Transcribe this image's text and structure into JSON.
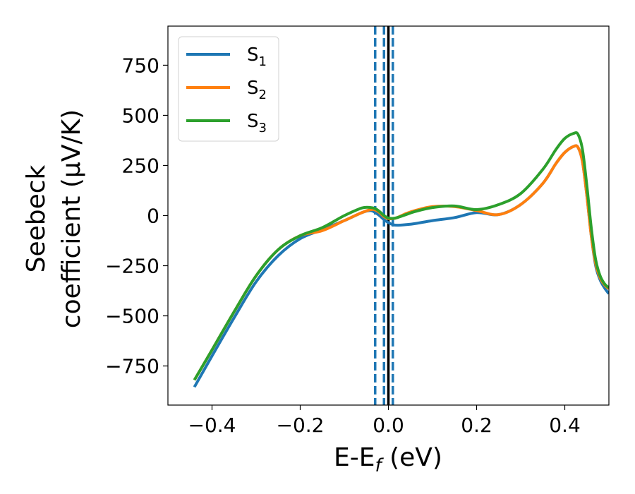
{
  "chart_data": {
    "type": "line",
    "xlabel": "E-E_f (eV)",
    "ylabel": [
      "Seebeck",
      "coefficient  (μV/K)"
    ],
    "xlim": [
      -0.5,
      0.5
    ],
    "ylim": [
      -945,
      945
    ],
    "xticks": [
      -0.4,
      -0.2,
      0.0,
      0.2,
      0.4
    ],
    "xtick_labels": [
      "−0.4",
      "−0.2",
      "0.0",
      "0.2",
      "0.4"
    ],
    "yticks": [
      750,
      500,
      250,
      0,
      -250,
      -500,
      -750
    ],
    "ytick_labels": [
      "750",
      "500",
      "250",
      "0",
      "−250",
      "−500",
      "−750"
    ],
    "grid": false,
    "legend_position": "top-left",
    "vertical_lines": [
      {
        "x": -0.03,
        "style": "dashed",
        "color": "#1f77b4"
      },
      {
        "x": -0.01,
        "style": "dashed",
        "color": "#1f77b4"
      },
      {
        "x": 0.01,
        "style": "dashed",
        "color": "#1f77b4"
      },
      {
        "x": 0.0,
        "style": "solid",
        "color": "#000000"
      }
    ],
    "series": [
      {
        "name": "S1",
        "label_main": "S",
        "label_sub": "1",
        "color": "#1f77b4",
        "x": [
          -0.44,
          -0.4,
          -0.35,
          -0.3,
          -0.25,
          -0.2,
          -0.15,
          -0.1,
          -0.06,
          -0.04,
          -0.03,
          -0.02,
          -0.01,
          0.0,
          0.01,
          0.02,
          0.04,
          0.06,
          0.1,
          0.15,
          0.2,
          0.25,
          0.3,
          0.35,
          0.38,
          0.4,
          0.42,
          0.43,
          0.44,
          0.45,
          0.46,
          0.47,
          0.48,
          0.49,
          0.5
        ],
        "y": [
          -855,
          -700,
          -510,
          -330,
          -200,
          -115,
          -70,
          -25,
          15,
          25,
          15,
          0,
          -20,
          -35,
          -45,
          -48,
          -45,
          -40,
          -25,
          -10,
          15,
          5,
          55,
          160,
          260,
          315,
          345,
          340,
          270,
          100,
          -100,
          -250,
          -320,
          -360,
          -390
        ]
      },
      {
        "name": "S2",
        "label_main": "S",
        "label_sub": "2",
        "color": "#ff7f0e",
        "x": [
          -0.44,
          -0.4,
          -0.35,
          -0.3,
          -0.25,
          -0.2,
          -0.15,
          -0.1,
          -0.06,
          -0.04,
          -0.03,
          -0.02,
          -0.01,
          0.0,
          0.01,
          0.02,
          0.04,
          0.06,
          0.1,
          0.15,
          0.2,
          0.25,
          0.3,
          0.35,
          0.38,
          0.4,
          0.42,
          0.43,
          0.44,
          0.45,
          0.46,
          0.47,
          0.48,
          0.49,
          0.5
        ],
        "y": [
          -820,
          -670,
          -480,
          -300,
          -170,
          -100,
          -75,
          -25,
          15,
          30,
          28,
          15,
          -5,
          -15,
          -15,
          -10,
          10,
          25,
          45,
          45,
          25,
          5,
          55,
          160,
          260,
          315,
          345,
          340,
          270,
          100,
          -100,
          -240,
          -310,
          -345,
          -365
        ]
      },
      {
        "name": "S3",
        "label_main": "S",
        "label_sub": "3",
        "color": "#2ca02c",
        "x": [
          -0.44,
          -0.4,
          -0.35,
          -0.3,
          -0.25,
          -0.2,
          -0.15,
          -0.1,
          -0.06,
          -0.04,
          -0.03,
          -0.02,
          -0.01,
          0.0,
          0.01,
          0.02,
          0.04,
          0.06,
          0.1,
          0.15,
          0.2,
          0.25,
          0.3,
          0.35,
          0.38,
          0.4,
          0.42,
          0.43,
          0.44,
          0.45,
          0.46,
          0.47,
          0.48,
          0.49,
          0.5
        ],
        "y": [
          -820,
          -670,
          -480,
          -300,
          -170,
          -100,
          -60,
          0,
          38,
          40,
          35,
          20,
          0,
          -12,
          -14,
          -10,
          5,
          20,
          40,
          48,
          30,
          55,
          110,
          230,
          330,
          385,
          410,
          405,
          330,
          150,
          -60,
          -220,
          -300,
          -340,
          -360
        ]
      }
    ]
  }
}
